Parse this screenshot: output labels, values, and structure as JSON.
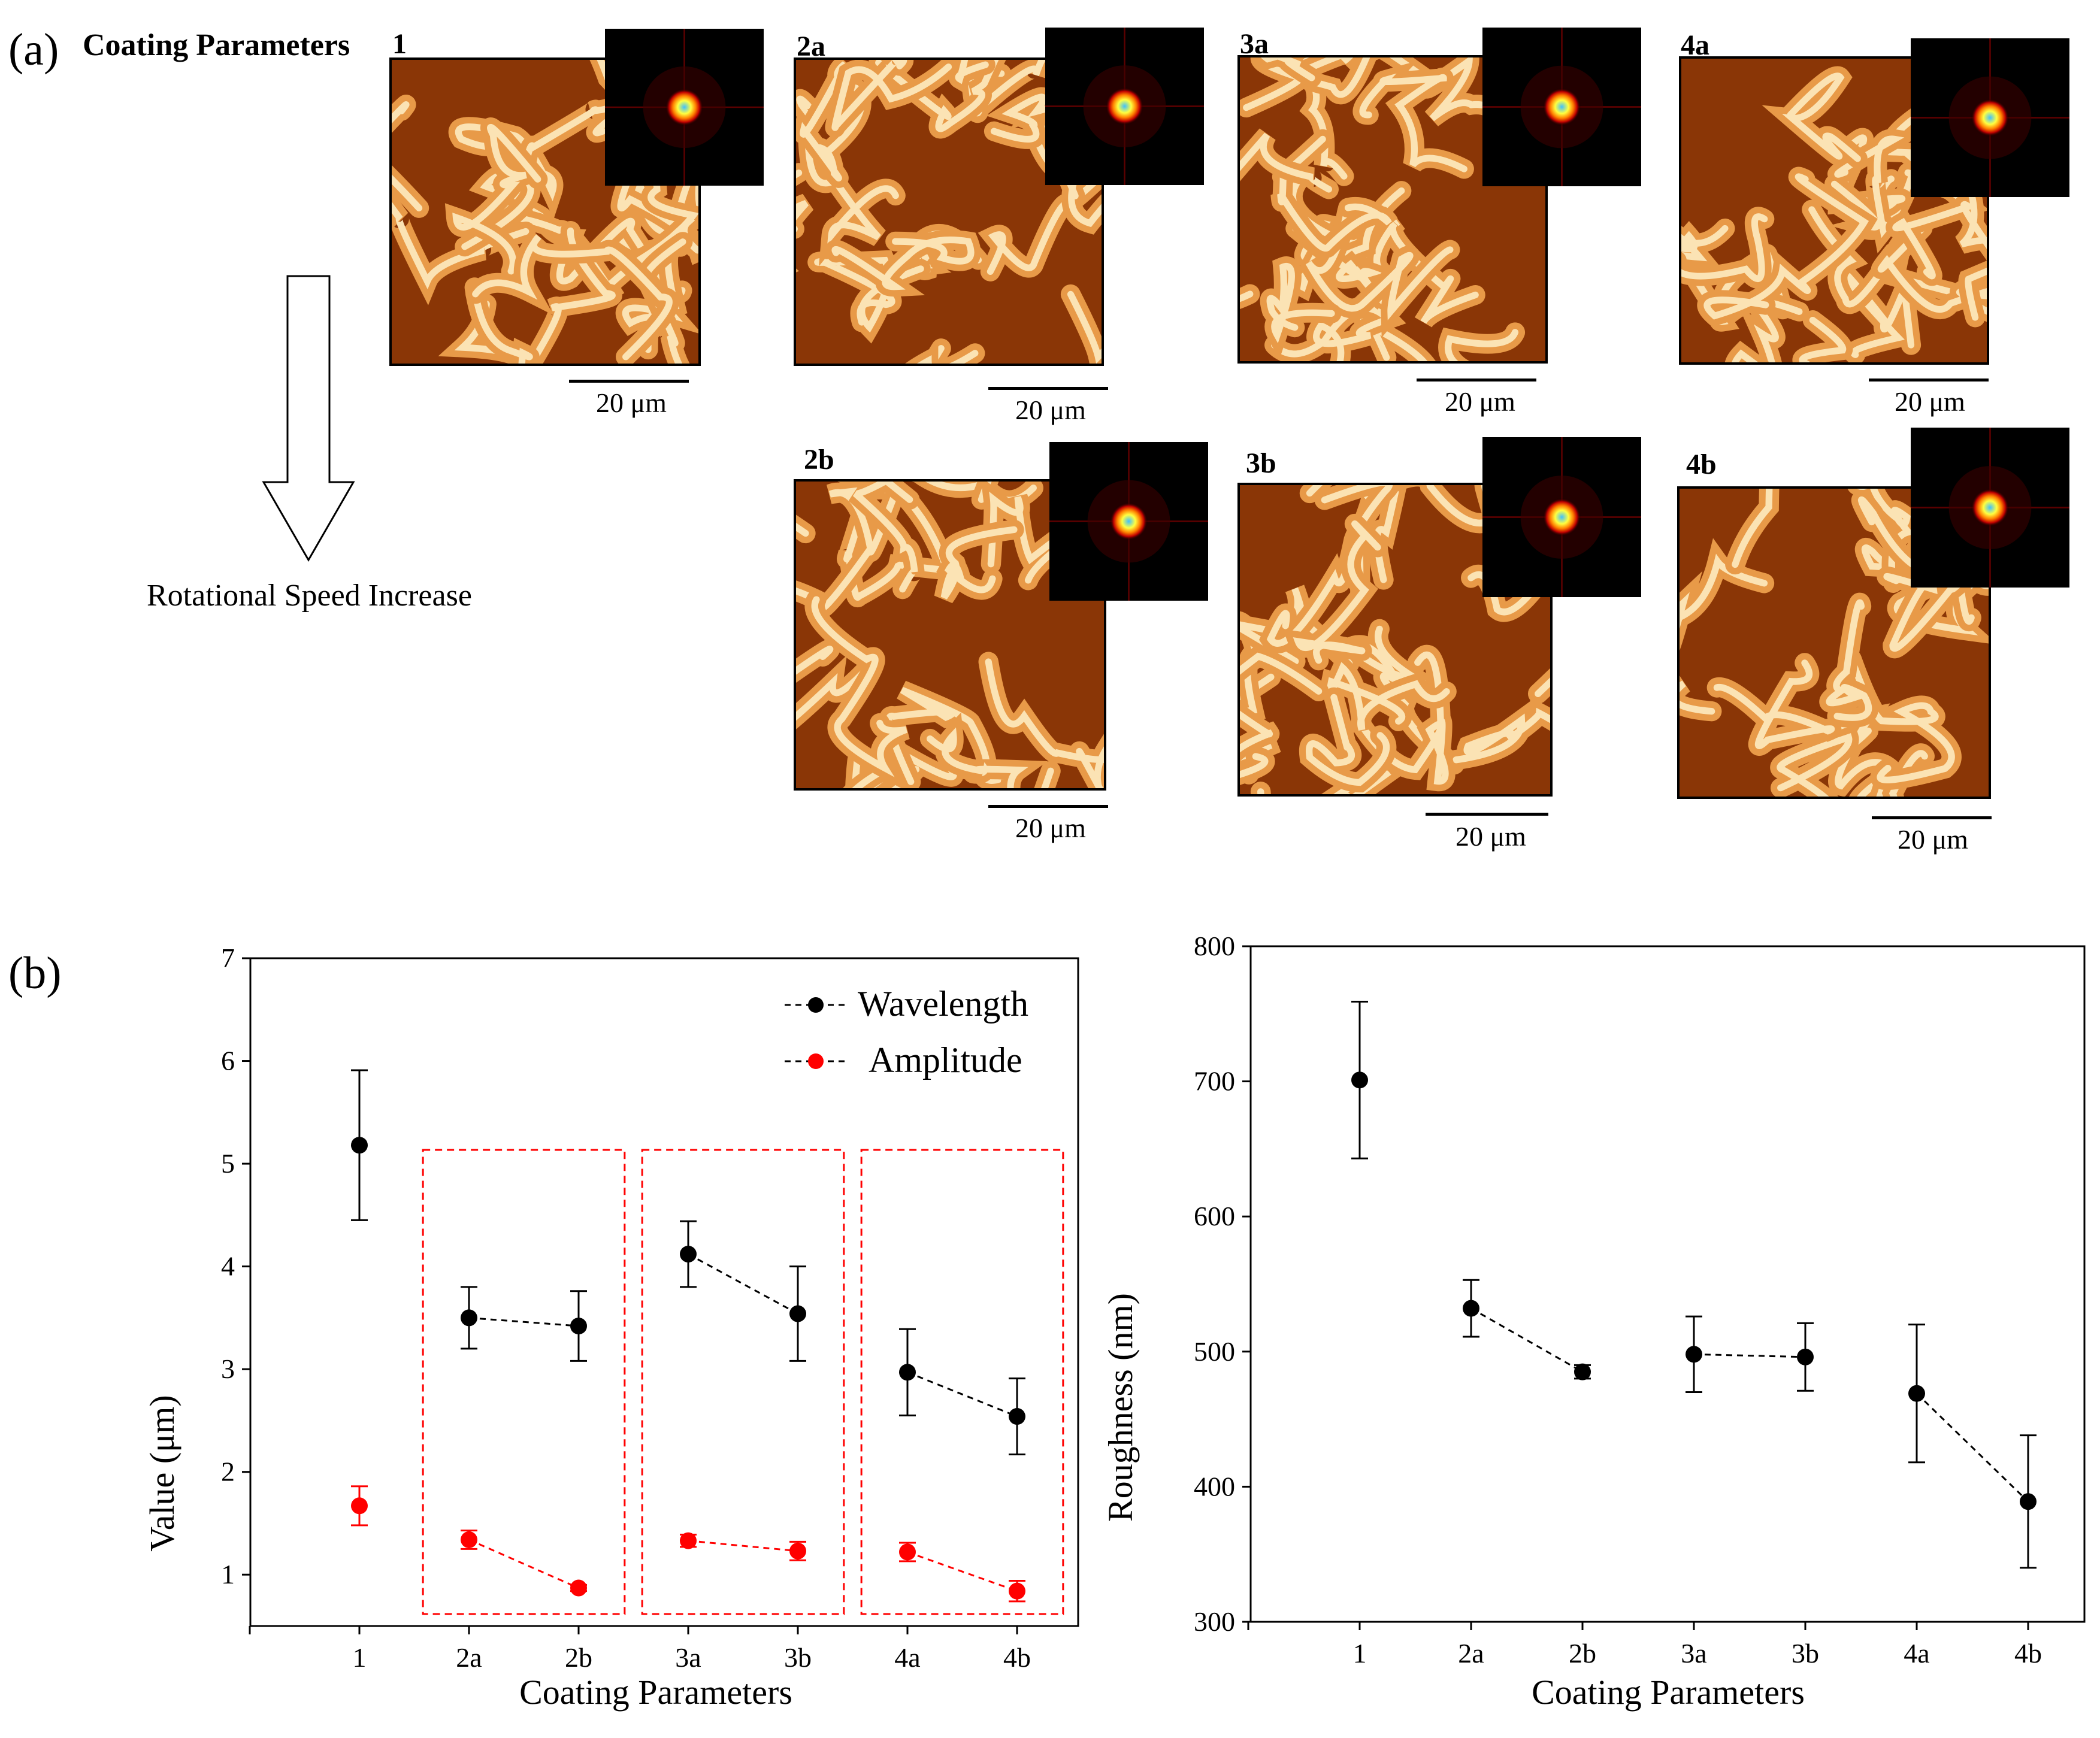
{
  "panel_a": {
    "label": "(a)",
    "title": "Coating Parameters",
    "arrow_text": "Rotational Speed Increase",
    "images": [
      {
        "id": "1",
        "scale": "20 μm"
      },
      {
        "id": "2a",
        "scale": "20 μm"
      },
      {
        "id": "3a",
        "scale": "20 μm"
      },
      {
        "id": "4a",
        "scale": "20 μm"
      },
      {
        "id": "2b",
        "scale": "20 μm"
      },
      {
        "id": "3b",
        "scale": "20 μm"
      },
      {
        "id": "4b",
        "scale": "20 μm"
      }
    ]
  },
  "panel_b": {
    "label": "(b)"
  },
  "colors": {
    "wavelength": "#000000",
    "amplitude": "#ff0000",
    "box": "#ff0000"
  },
  "chart_data": [
    {
      "type": "scatter",
      "xlabel": "Coating Parameters",
      "ylabel": "Value (μm)",
      "ylim": [
        0.5,
        7
      ],
      "yticks": [
        1,
        2,
        3,
        4,
        5,
        6,
        7
      ],
      "categories": [
        "1",
        "2a",
        "2b",
        "3a",
        "3b",
        "4a",
        "4b"
      ],
      "legend": [
        "Wavelength",
        "Amplitude"
      ],
      "series": [
        {
          "name": "Wavelength",
          "color": "#000000",
          "values": [
            5.18,
            3.5,
            3.42,
            4.12,
            3.54,
            2.97,
            2.54
          ],
          "errors": [
            0.73,
            0.3,
            0.34,
            0.32,
            0.46,
            0.42,
            0.37
          ]
        },
        {
          "name": "Amplitude",
          "color": "#ff0000",
          "values": [
            1.67,
            1.34,
            0.87,
            1.33,
            1.23,
            1.22,
            0.84
          ],
          "errors": [
            0.19,
            0.09,
            0.03,
            0.06,
            0.09,
            0.09,
            0.1
          ]
        }
      ],
      "connected_pairs": [
        [
          1,
          2
        ],
        [
          3,
          4
        ],
        [
          5,
          6
        ]
      ],
      "boxes": [
        [
          1,
          2
        ],
        [
          3,
          4
        ],
        [
          5,
          6
        ]
      ]
    },
    {
      "type": "scatter",
      "xlabel": "Coating Parameters",
      "ylabel": "Roughness (nm)",
      "ylim": [
        300,
        800
      ],
      "yticks": [
        300,
        400,
        500,
        600,
        700,
        800
      ],
      "categories": [
        "1",
        "2a",
        "2b",
        "3a",
        "3b",
        "4a",
        "4b"
      ],
      "series": [
        {
          "name": "Roughness",
          "color": "#000000",
          "values": [
            701,
            532,
            485,
            498,
            496,
            469,
            389
          ],
          "errors": [
            58,
            21,
            5,
            28,
            25,
            51,
            49
          ]
        }
      ],
      "connected_pairs": [
        [
          1,
          2
        ],
        [
          3,
          4
        ],
        [
          5,
          6
        ]
      ]
    }
  ]
}
